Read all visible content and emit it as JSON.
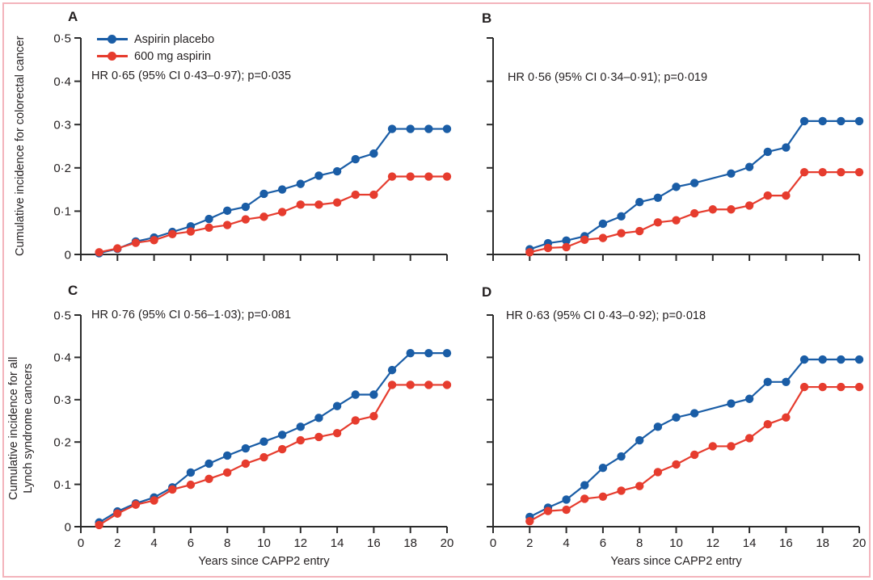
{
  "figure": {
    "border_color": "#f3b4bc",
    "background": "#ffffff",
    "axis_color": "#2b2b2b",
    "text_color": "#231f20"
  },
  "legend": {
    "items": [
      {
        "label": "Aspirin placebo",
        "color": "#1a5da6"
      },
      {
        "label": "600 mg aspirin",
        "color": "#e63c2e"
      }
    ]
  },
  "chart_data": {
    "type": "line",
    "x_axis": {
      "label": "Years since CAPP2 entry",
      "range": [
        0,
        20
      ],
      "ticks": [
        0,
        2,
        4,
        6,
        8,
        10,
        12,
        14,
        16,
        18,
        20
      ],
      "tick_labels": [
        "0",
        "2",
        "4",
        "6",
        "8",
        "10",
        "12",
        "14",
        "16",
        "18",
        "20"
      ]
    },
    "y_axis": {
      "range": [
        0,
        0.5
      ],
      "ticks": [
        0,
        0.1,
        0.2,
        0.3,
        0.4,
        0.5
      ],
      "tick_labels": [
        "0",
        "0·1",
        "0·2",
        "0·3",
        "0·4",
        "0·5"
      ]
    },
    "legend_position": "top-left-panel-A",
    "grid": false,
    "panels": [
      {
        "label": "A",
        "hr_text": "HR 0·65 (95% CI 0·43–0·97); p=0·035",
        "ylabel_lines": [
          "Cumulative incidence for colorectal cancer"
        ],
        "show_y_tick_labels": true,
        "show_x_tick_labels": false,
        "series": [
          {
            "name": "Aspirin placebo",
            "color": "#1a5da6",
            "x": [
              1,
              2,
              3,
              4,
              5,
              6,
              7,
              8,
              9,
              10,
              11,
              12,
              13,
              14,
              15,
              16,
              17,
              18,
              19,
              20
            ],
            "y": [
              0.003,
              0.013,
              0.03,
              0.039,
              0.052,
              0.065,
              0.082,
              0.101,
              0.11,
              0.14,
              0.15,
              0.163,
              0.182,
              0.192,
              0.22,
              0.233,
              0.29,
              0.29,
              0.29,
              0.29
            ]
          },
          {
            "name": "600 mg aspirin",
            "color": "#e63c2e",
            "x": [
              1,
              2,
              3,
              4,
              5,
              6,
              7,
              8,
              9,
              10,
              11,
              12,
              13,
              14,
              15,
              16,
              17,
              18,
              19,
              20
            ],
            "y": [
              0.005,
              0.014,
              0.027,
              0.033,
              0.047,
              0.053,
              0.062,
              0.068,
              0.081,
              0.087,
              0.098,
              0.115,
              0.115,
              0.12,
              0.138,
              0.138,
              0.18,
              0.18,
              0.18,
              0.18
            ]
          }
        ]
      },
      {
        "label": "B",
        "hr_text": "HR 0·56 (95% CI 0·34–0·91); p=0·019",
        "ylabel_lines": [],
        "show_y_tick_labels": false,
        "show_x_tick_labels": false,
        "series": [
          {
            "name": "Aspirin placebo",
            "color": "#1a5da6",
            "x": [
              2,
              3,
              4,
              5,
              6,
              7,
              8,
              9,
              10,
              11,
              13,
              14,
              15,
              16,
              17,
              18,
              19,
              20
            ],
            "y": [
              0.012,
              0.026,
              0.032,
              0.042,
              0.071,
              0.088,
              0.121,
              0.131,
              0.156,
              0.165,
              0.187,
              0.202,
              0.237,
              0.247,
              0.308,
              0.308,
              0.308,
              0.308
            ]
          },
          {
            "name": "600 mg aspirin",
            "color": "#e63c2e",
            "x": [
              2,
              3,
              4,
              5,
              6,
              7,
              8,
              9,
              10,
              11,
              12,
              13,
              14,
              15,
              16,
              17,
              18,
              19,
              20
            ],
            "y": [
              0.005,
              0.015,
              0.017,
              0.034,
              0.038,
              0.049,
              0.054,
              0.074,
              0.079,
              0.095,
              0.104,
              0.104,
              0.113,
              0.136,
              0.136,
              0.19,
              0.19,
              0.19,
              0.19
            ]
          }
        ]
      },
      {
        "label": "C",
        "hr_text": "HR 0·76 (95% CI 0·56–1·03); p=0·081",
        "ylabel_lines": [
          "Cumulative incidence for all",
          "Lynch syndrome cancers"
        ],
        "show_y_tick_labels": true,
        "show_x_tick_labels": true,
        "series": [
          {
            "name": "Aspirin placebo",
            "color": "#1a5da6",
            "x": [
              1,
              2,
              3,
              4,
              5,
              6,
              7,
              8,
              9,
              10,
              11,
              12,
              13,
              14,
              15,
              16,
              17,
              18,
              19,
              20
            ],
            "y": [
              0.01,
              0.036,
              0.055,
              0.069,
              0.093,
              0.128,
              0.149,
              0.168,
              0.185,
              0.201,
              0.217,
              0.236,
              0.257,
              0.285,
              0.312,
              0.312,
              0.37,
              0.41,
              0.41,
              0.41
            ]
          },
          {
            "name": "600 mg aspirin",
            "color": "#e63c2e",
            "x": [
              1,
              2,
              3,
              4,
              5,
              6,
              7,
              8,
              9,
              10,
              11,
              12,
              13,
              14,
              15,
              16,
              17,
              18,
              19,
              20
            ],
            "y": [
              0.004,
              0.031,
              0.052,
              0.062,
              0.088,
              0.099,
              0.113,
              0.128,
              0.149,
              0.164,
              0.183,
              0.204,
              0.212,
              0.221,
              0.251,
              0.261,
              0.335,
              0.335,
              0.335,
              0.335
            ]
          }
        ]
      },
      {
        "label": "D",
        "hr_text": "HR 0·63 (95% CI 0·43–0·92); p=0·018",
        "ylabel_lines": [],
        "show_y_tick_labels": false,
        "show_x_tick_labels": true,
        "series": [
          {
            "name": "Aspirin placebo",
            "color": "#1a5da6",
            "x": [
              2,
              3,
              4,
              5,
              6,
              7,
              8,
              9,
              10,
              11,
              13,
              14,
              15,
              16,
              17,
              18,
              19,
              20
            ],
            "y": [
              0.023,
              0.045,
              0.064,
              0.098,
              0.139,
              0.166,
              0.204,
              0.236,
              0.258,
              0.268,
              0.291,
              0.302,
              0.342,
              0.342,
              0.395,
              0.395,
              0.395,
              0.395
            ]
          },
          {
            "name": "600 mg aspirin",
            "color": "#e63c2e",
            "x": [
              2,
              3,
              4,
              5,
              6,
              7,
              8,
              9,
              10,
              11,
              12,
              13,
              14,
              15,
              16,
              17,
              18,
              19,
              20
            ],
            "y": [
              0.013,
              0.037,
              0.04,
              0.066,
              0.071,
              0.085,
              0.096,
              0.129,
              0.147,
              0.17,
              0.19,
              0.19,
              0.209,
              0.242,
              0.258,
              0.33,
              0.33,
              0.33,
              0.33
            ]
          }
        ]
      }
    ]
  }
}
